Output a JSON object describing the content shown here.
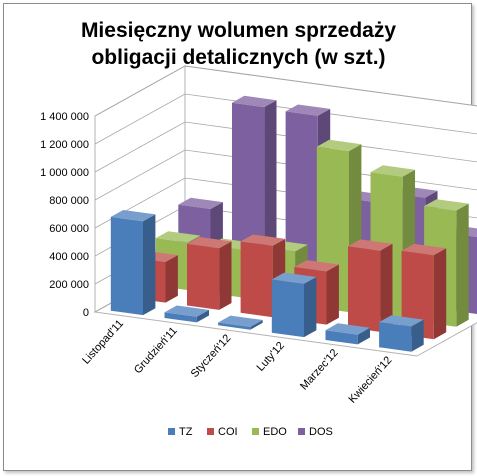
{
  "chart_data": {
    "type": "bar",
    "subtype": "3d-column-depth",
    "title_lines": [
      "Miesięczny wolumen sprzedaży",
      "obligacji detalicznych (w szt.)"
    ],
    "categories": [
      "Listopad'11",
      "Grudzień'11",
      "Styczeń'12",
      "Luty'12",
      "Marzec'12",
      "Kwiecień'12"
    ],
    "series": [
      {
        "name": "TZ",
        "color": "#4a7ebb",
        "values": [
          670000,
          40000,
          20000,
          380000,
          70000,
          180000
        ]
      },
      {
        "name": "COI",
        "color": "#be4b48",
        "values": [
          290000,
          440000,
          510000,
          380000,
          580000,
          600000
        ]
      },
      {
        "name": "EDO",
        "color": "#98b954",
        "values": [
          340000,
          340000,
          380000,
          1150000,
          1020000,
          830000
        ]
      },
      {
        "name": "DOS",
        "color": "#7d60a0",
        "values": [
          490000,
          1270000,
          1260000,
          700000,
          780000,
          550000
        ]
      }
    ],
    "yticks": [
      "0",
      "200 000",
      "400 000",
      "600 000",
      "800 000",
      "1 000 000",
      "1 200 000",
      "1 400 000"
    ],
    "ylim": [
      0,
      1400000
    ],
    "grid": true,
    "legend": "bottom"
  }
}
